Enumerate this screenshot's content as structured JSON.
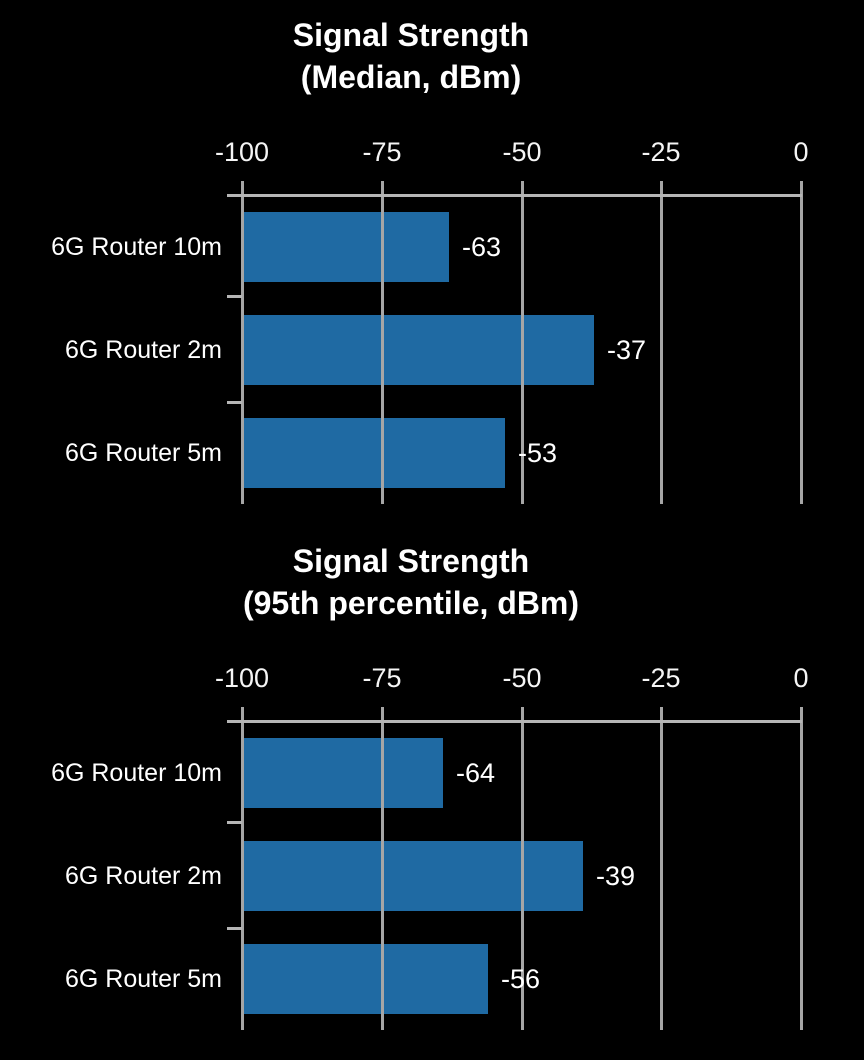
{
  "colors": {
    "background": "#000000",
    "bar": "#1f6aa3",
    "gridline": "#a6a6a6",
    "axis": "#b6b6b6",
    "text": "#ffffff"
  },
  "chart_data": [
    {
      "type": "bar",
      "orientation": "horizontal",
      "title": "Signal Strength (Median, dBm)",
      "title_line1": "Signal Strength",
      "title_line2": "(Median, dBm)",
      "categories": [
        "6G Router 10m",
        "6G Router 2m",
        "6G Router 5m"
      ],
      "values": [
        -63,
        -37,
        -53
      ],
      "value_labels": [
        "-63",
        "-37",
        "-53"
      ],
      "xlim": [
        -100,
        0
      ],
      "x_ticks": [
        -100,
        -75,
        -50,
        -25,
        0
      ],
      "x_tick_labels": [
        "-100",
        "-75",
        "-50",
        "-25",
        "0"
      ],
      "grid": true,
      "legend": false
    },
    {
      "type": "bar",
      "orientation": "horizontal",
      "title": "Signal Strength (95th percentile, dBm)",
      "title_line1": "Signal Strength",
      "title_line2": "(95th percentile, dBm)",
      "categories": [
        "6G Router 10m",
        "6G Router 2m",
        "6G Router 5m"
      ],
      "values": [
        -64,
        -39,
        -56
      ],
      "value_labels": [
        "-64",
        "-39",
        "-56"
      ],
      "xlim": [
        -100,
        0
      ],
      "x_ticks": [
        -100,
        -75,
        -50,
        -25,
        0
      ],
      "x_tick_labels": [
        "-100",
        "-75",
        "-50",
        "-25",
        "0"
      ],
      "grid": true,
      "legend": false
    }
  ]
}
